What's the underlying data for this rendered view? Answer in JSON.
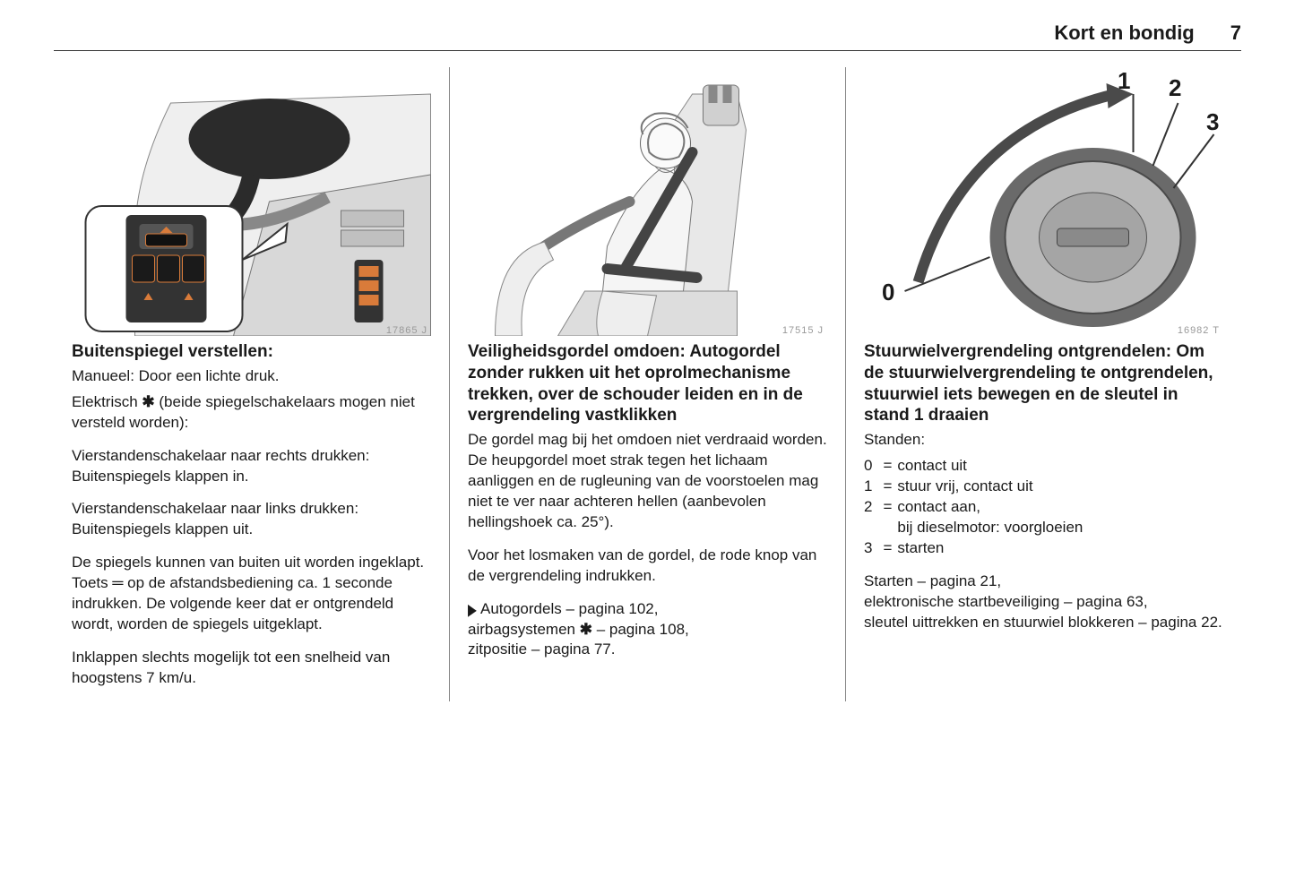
{
  "header": {
    "title": "Kort en bondig",
    "page_number": "7"
  },
  "figure_ids": {
    "col1": "17865 J",
    "col2": "17515 J",
    "col3": "16982 T"
  },
  "col1": {
    "heading": "Buitenspiegel verstellen:",
    "p1": "Manueel: Door een lichte druk.",
    "p2_pre": "Elektrisch ",
    "p2_sym": "✱",
    "p2_post": " (beide spiegelschakelaars mogen niet versteld worden):",
    "p3": "Vierstandenschakelaar naar rechts drukken: Buitenspiegels klappen in.",
    "p4": "Vierstandenschakelaar naar links drukken: Buitenspiegels klappen uit.",
    "p5_pre": "De spiegels kunnen van buiten uit worden ingeklapt. Toets ",
    "p5_sym": "═",
    "p5_post": " op de afstandsbediening ca. 1 seconde indrukken. De volgende keer dat er ontgrendeld wordt, worden de spiegels uitgeklapt.",
    "p6": "Inklappen slechts mogelijk tot een snelheid van hoogstens 7 km/u."
  },
  "col2": {
    "heading": "Veiligheidsgordel omdoen: Autogordel zonder rukken uit het oprolmechanisme trekken, over de schouder leiden en in de vergrendeling vastklikken",
    "p1": "De gordel mag bij het omdoen niet verdraaid worden. De heupgordel moet strak tegen het lichaam aanliggen en de rugleuning van de voorstoelen mag niet te ver naar achteren hellen (aanbevolen hellingshoek ca. 25°).",
    "p2": "Voor het losmaken van de gordel, de rode knop van de vergrendeling indrukken.",
    "ref_line1_pre": "Autogordels – pagina 102,",
    "ref_line2_pre": "airbagsystemen ",
    "ref_line2_sym": "✱",
    "ref_line2_post": " – pagina 108,",
    "ref_line3": "zitpositie – pagina 77."
  },
  "col3": {
    "heading": "Stuurwielvergrendeling ontgrendelen: Om de stuurwielvergrendeling te ontgrendelen, stuurwiel iets bewegen en de sleutel in stand 1 draaien",
    "pos_label": "Standen:",
    "positions": [
      {
        "n": "0",
        "t": "contact uit"
      },
      {
        "n": "1",
        "t": "stuur vrij, contact uit"
      },
      {
        "n": "2",
        "t": "contact aan,\nbij dieselmotor: voorgloeien"
      },
      {
        "n": "3",
        "t": "starten"
      }
    ],
    "refs": "Starten – pagina 21,\nelektronische startbeveiliging – pagina 63,\nsleutel uittrekken en stuurwiel blokkeren – pagina 22.",
    "dial_labels": {
      "zero": "0",
      "one": "1",
      "two": "2",
      "three": "3"
    }
  },
  "colors": {
    "text": "#1a1a1a",
    "rule": "#888888",
    "figid": "#999999",
    "mirror_dark": "#2b2b2b",
    "door_panel": "#d8d8d8",
    "button_orange": "#d97b3a",
    "dial_fill": "#b9b9b9",
    "dial_rim": "#6a6a6a",
    "dial_slot": "#8a8a8a"
  }
}
